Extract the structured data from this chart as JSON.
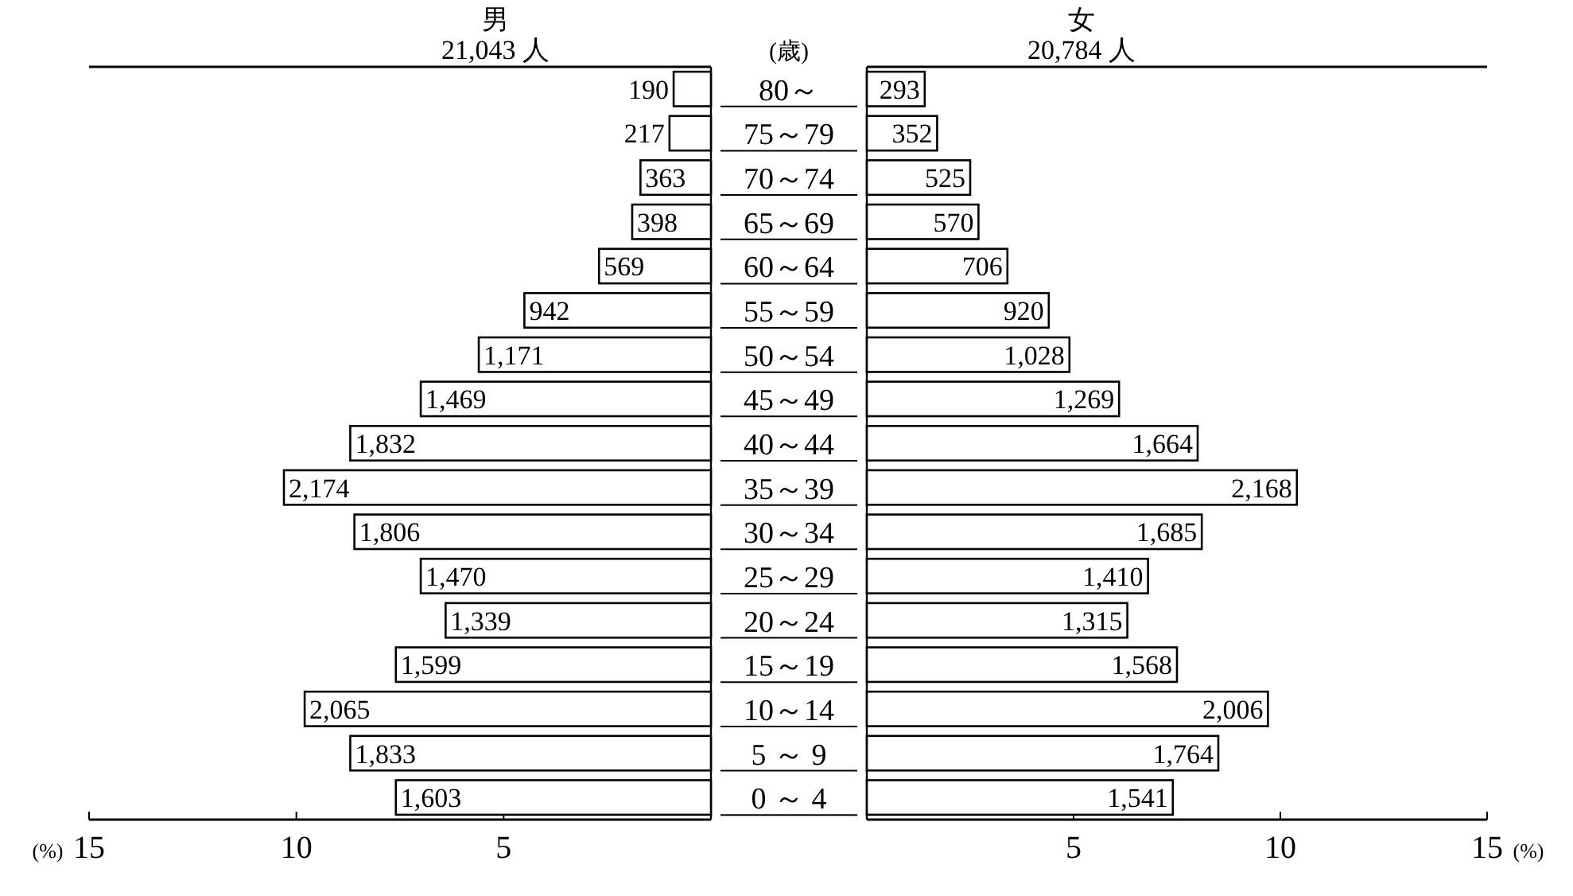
{
  "chart_data": [
    {
      "type": "bar",
      "orientation": "horizontal",
      "title": "男",
      "subtitle": "21,043 人",
      "ylabel": "(歳)",
      "xlabel": "(%)",
      "categories": [
        "80～",
        "75～79",
        "70～74",
        "65～69",
        "60～64",
        "55～59",
        "50～54",
        "45～49",
        "40～44",
        "35～39",
        "30～34",
        "25～29",
        "20～24",
        "15～19",
        "10～14",
        "5 ～ 9",
        "0 ～ 4"
      ],
      "values": [
        0.9,
        1.0,
        1.7,
        1.9,
        2.7,
        4.5,
        5.6,
        7.0,
        8.7,
        10.3,
        8.6,
        7.0,
        6.4,
        7.6,
        9.8,
        8.7,
        7.6
      ],
      "annotations": [
        {
          "text": "190",
          "x": 0.9,
          "y": "80～"
        },
        {
          "text": "217",
          "x": 1.0,
          "y": "75～79"
        },
        {
          "text": "363",
          "x": 1.7,
          "y": "70～74"
        },
        {
          "text": "398",
          "x": 1.9,
          "y": "65～69"
        },
        {
          "text": "569",
          "x": 2.7,
          "y": "60～64"
        },
        {
          "text": "942",
          "x": 4.5,
          "y": "55～59"
        },
        {
          "text": "1,171",
          "x": 5.6,
          "y": "50～54"
        },
        {
          "text": "1,469",
          "x": 7.0,
          "y": "45～49"
        },
        {
          "text": "1,832",
          "x": 8.7,
          "y": "40～44"
        },
        {
          "text": "2,174",
          "x": 10.3,
          "y": "35～39"
        },
        {
          "text": "1,806",
          "x": 8.6,
          "y": "30～34"
        },
        {
          "text": "1,470",
          "x": 7.0,
          "y": "25～29"
        },
        {
          "text": "1,339",
          "x": 6.4,
          "y": "20～24"
        },
        {
          "text": "1,599",
          "x": 7.6,
          "y": "15～19"
        },
        {
          "text": "2,065",
          "x": 9.8,
          "y": "10～14"
        },
        {
          "text": "1,833",
          "x": 8.7,
          "y": "5 ～ 9"
        },
        {
          "text": "1,603",
          "x": 7.6,
          "y": "0 ～ 4"
        }
      ],
      "color": "#ffffff",
      "xlim": [
        15,
        0
      ],
      "xticks": [
        15,
        10,
        5
      ]
    },
    {
      "type": "bar",
      "orientation": "horizontal",
      "title": "女",
      "subtitle": "20,784 人",
      "xlabel": "(%)",
      "tick_labels": "x",
      "categories": [
        "80～",
        "75～79",
        "70～74",
        "65～69",
        "60～64",
        "55～59",
        "50～54",
        "45～49",
        "40～44",
        "35～39",
        "30～34",
        "25～29",
        "20～24",
        "15～19",
        "10～14",
        "5 ～ 9",
        "0 ～ 4"
      ],
      "values": [
        1.4,
        1.7,
        2.5,
        2.7,
        3.4,
        4.4,
        4.9,
        6.1,
        8.0,
        10.4,
        8.1,
        6.8,
        6.3,
        7.5,
        9.7,
        8.5,
        7.4
      ],
      "annotations": [
        {
          "text": "293",
          "x": 1.4,
          "y": "80～"
        },
        {
          "text": "352",
          "x": 1.7,
          "y": "75～79"
        },
        {
          "text": "525",
          "x": 2.5,
          "y": "70～74"
        },
        {
          "text": "570",
          "x": 2.7,
          "y": "65～69"
        },
        {
          "text": "706",
          "x": 3.4,
          "y": "60～64"
        },
        {
          "text": "920",
          "x": 4.4,
          "y": "55～59"
        },
        {
          "text": "1,028",
          "x": 4.9,
          "y": "50～54"
        },
        {
          "text": "1,269",
          "x": 6.1,
          "y": "45～49"
        },
        {
          "text": "1,664",
          "x": 8.0,
          "y": "40～44"
        },
        {
          "text": "2,168",
          "x": 10.4,
          "y": "35～39"
        },
        {
          "text": "1,685",
          "x": 8.1,
          "y": "30～34"
        },
        {
          "text": "1,410",
          "x": 6.8,
          "y": "25～29"
        },
        {
          "text": "1,315",
          "x": 6.3,
          "y": "20～24"
        },
        {
          "text": "1,568",
          "x": 7.5,
          "y": "15～19"
        },
        {
          "text": "2,006",
          "x": 9.7,
          "y": "10～14"
        },
        {
          "text": "1,764",
          "x": 8.5,
          "y": "5 ～ 9"
        },
        {
          "text": "1,541",
          "x": 7.4,
          "y": "0 ～ 4"
        }
      ],
      "color": "#ffffff",
      "xlim": [
        0,
        15
      ],
      "xticks": [
        5,
        10,
        15
      ]
    }
  ]
}
